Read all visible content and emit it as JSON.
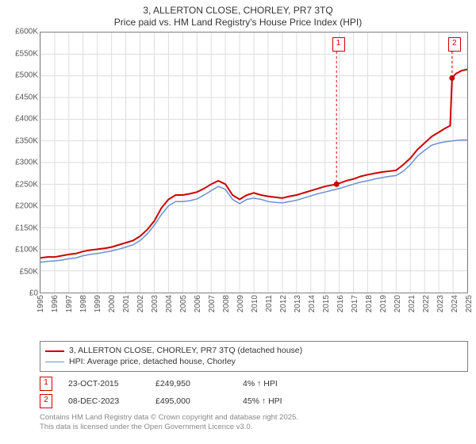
{
  "title_line1": "3, ALLERTON CLOSE, CHORLEY, PR7 3TQ",
  "title_line2": "Price paid vs. HM Land Registry's House Price Index (HPI)",
  "chart": {
    "type": "line",
    "background_color": "#ffffff",
    "border_color": "#808080",
    "grid_color": "#dddddd",
    "x": {
      "min": 1995,
      "max": 2025,
      "ticks": [
        1995,
        1996,
        1997,
        1998,
        1999,
        2000,
        2001,
        2002,
        2003,
        2004,
        2005,
        2006,
        2007,
        2008,
        2009,
        2010,
        2011,
        2012,
        2013,
        2014,
        2015,
        2016,
        2017,
        2018,
        2019,
        2020,
        2021,
        2022,
        2023,
        2024,
        2025
      ]
    },
    "y": {
      "min": 0,
      "max": 600000,
      "tick_step": 50000,
      "tick_labels": [
        "£0",
        "£50K",
        "£100K",
        "£150K",
        "£200K",
        "£250K",
        "£300K",
        "£350K",
        "£400K",
        "£450K",
        "£500K",
        "£550K",
        "£600K"
      ]
    },
    "series": [
      {
        "name": "price_paid",
        "label": "3, ALLERTON CLOSE, CHORLEY, PR7 3TQ (detached house)",
        "color": "#cc0000",
        "line_width": 2,
        "data": [
          [
            1995.0,
            80000
          ],
          [
            1995.5,
            82000
          ],
          [
            1996.0,
            82000
          ],
          [
            1996.5,
            85000
          ],
          [
            1997.0,
            88000
          ],
          [
            1997.5,
            90000
          ],
          [
            1998.0,
            95000
          ],
          [
            1998.5,
            98000
          ],
          [
            1999.0,
            100000
          ],
          [
            1999.5,
            102000
          ],
          [
            2000.0,
            105000
          ],
          [
            2000.5,
            110000
          ],
          [
            2001.0,
            115000
          ],
          [
            2001.5,
            120000
          ],
          [
            2002.0,
            130000
          ],
          [
            2002.5,
            145000
          ],
          [
            2003.0,
            165000
          ],
          [
            2003.5,
            195000
          ],
          [
            2004.0,
            215000
          ],
          [
            2004.5,
            225000
          ],
          [
            2005.0,
            225000
          ],
          [
            2005.5,
            228000
          ],
          [
            2006.0,
            232000
          ],
          [
            2006.5,
            240000
          ],
          [
            2007.0,
            250000
          ],
          [
            2007.5,
            258000
          ],
          [
            2008.0,
            250000
          ],
          [
            2008.5,
            225000
          ],
          [
            2009.0,
            215000
          ],
          [
            2009.5,
            225000
          ],
          [
            2010.0,
            230000
          ],
          [
            2010.5,
            225000
          ],
          [
            2011.0,
            222000
          ],
          [
            2011.5,
            220000
          ],
          [
            2012.0,
            218000
          ],
          [
            2012.5,
            222000
          ],
          [
            2013.0,
            225000
          ],
          [
            2013.5,
            230000
          ],
          [
            2014.0,
            235000
          ],
          [
            2014.5,
            240000
          ],
          [
            2015.0,
            245000
          ],
          [
            2015.5,
            248000
          ],
          [
            2015.81,
            249950
          ],
          [
            2016.0,
            252000
          ],
          [
            2016.5,
            258000
          ],
          [
            2017.0,
            262000
          ],
          [
            2017.5,
            268000
          ],
          [
            2018.0,
            272000
          ],
          [
            2018.5,
            275000
          ],
          [
            2019.0,
            278000
          ],
          [
            2019.5,
            280000
          ],
          [
            2020.0,
            282000
          ],
          [
            2020.5,
            295000
          ],
          [
            2021.0,
            310000
          ],
          [
            2021.5,
            330000
          ],
          [
            2022.0,
            345000
          ],
          [
            2022.5,
            360000
          ],
          [
            2023.0,
            370000
          ],
          [
            2023.5,
            380000
          ],
          [
            2023.8,
            385000
          ],
          [
            2023.93,
            495000
          ],
          [
            2024.2,
            505000
          ],
          [
            2024.6,
            512000
          ],
          [
            2025.0,
            515000
          ]
        ]
      },
      {
        "name": "hpi",
        "label": "HPI: Average price, detached house, Chorley",
        "color": "#6b8fd4",
        "line_width": 1.5,
        "data": [
          [
            1995.0,
            70000
          ],
          [
            1995.5,
            72000
          ],
          [
            1996.0,
            73000
          ],
          [
            1996.5,
            75000
          ],
          [
            1997.0,
            78000
          ],
          [
            1997.5,
            80000
          ],
          [
            1998.0,
            85000
          ],
          [
            1998.5,
            88000
          ],
          [
            1999.0,
            90000
          ],
          [
            1999.5,
            93000
          ],
          [
            2000.0,
            96000
          ],
          [
            2000.5,
            100000
          ],
          [
            2001.0,
            105000
          ],
          [
            2001.5,
            110000
          ],
          [
            2002.0,
            120000
          ],
          [
            2002.5,
            135000
          ],
          [
            2003.0,
            155000
          ],
          [
            2003.5,
            180000
          ],
          [
            2004.0,
            200000
          ],
          [
            2004.5,
            210000
          ],
          [
            2005.0,
            210000
          ],
          [
            2005.5,
            212000
          ],
          [
            2006.0,
            216000
          ],
          [
            2006.5,
            225000
          ],
          [
            2007.0,
            235000
          ],
          [
            2007.5,
            245000
          ],
          [
            2008.0,
            238000
          ],
          [
            2008.5,
            215000
          ],
          [
            2009.0,
            205000
          ],
          [
            2009.5,
            215000
          ],
          [
            2010.0,
            218000
          ],
          [
            2010.5,
            215000
          ],
          [
            2011.0,
            210000
          ],
          [
            2011.5,
            208000
          ],
          [
            2012.0,
            207000
          ],
          [
            2012.5,
            210000
          ],
          [
            2013.0,
            213000
          ],
          [
            2013.5,
            218000
          ],
          [
            2014.0,
            223000
          ],
          [
            2014.5,
            228000
          ],
          [
            2015.0,
            232000
          ],
          [
            2015.5,
            236000
          ],
          [
            2016.0,
            240000
          ],
          [
            2016.5,
            245000
          ],
          [
            2017.0,
            250000
          ],
          [
            2017.5,
            255000
          ],
          [
            2018.0,
            258000
          ],
          [
            2018.5,
            262000
          ],
          [
            2019.0,
            265000
          ],
          [
            2019.5,
            268000
          ],
          [
            2020.0,
            270000
          ],
          [
            2020.5,
            280000
          ],
          [
            2021.0,
            295000
          ],
          [
            2021.5,
            315000
          ],
          [
            2022.0,
            328000
          ],
          [
            2022.5,
            340000
          ],
          [
            2023.0,
            345000
          ],
          [
            2023.5,
            348000
          ],
          [
            2024.0,
            350000
          ],
          [
            2024.5,
            352000
          ],
          [
            2025.0,
            352000
          ]
        ]
      }
    ],
    "markers": [
      {
        "n": "1",
        "x": 2015.81,
        "y": 249950,
        "color": "#cc0000"
      },
      {
        "n": "2",
        "x": 2023.93,
        "y": 495000,
        "color": "#cc0000"
      }
    ]
  },
  "legend": [
    {
      "color": "#cc0000",
      "width": 2,
      "label": "3, ALLERTON CLOSE, CHORLEY, PR7 3TQ (detached house)"
    },
    {
      "color": "#6b8fd4",
      "width": 1.5,
      "label": "HPI: Average price, detached house, Chorley"
    }
  ],
  "notes": [
    {
      "n": "1",
      "color": "#cc0000",
      "date": "23-OCT-2015",
      "price": "£249,950",
      "delta": "4% ↑ HPI"
    },
    {
      "n": "2",
      "color": "#cc0000",
      "date": "08-DEC-2023",
      "price": "£495,000",
      "delta": "45% ↑ HPI"
    }
  ],
  "attrib_line1": "Contains HM Land Registry data © Crown copyright and database right 2025.",
  "attrib_line2": "This data is licensed under the Open Government Licence v3.0."
}
